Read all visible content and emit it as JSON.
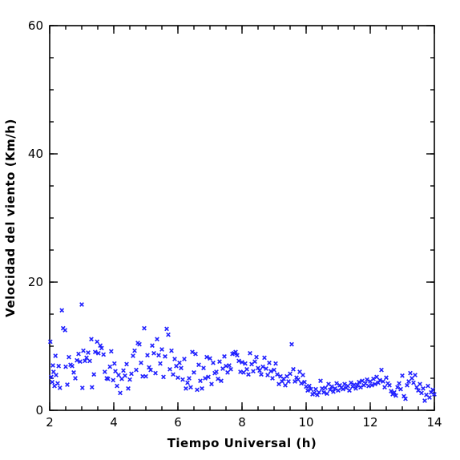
{
  "chart_data": {
    "type": "scatter",
    "xlabel": "Tiempo Universal (h)",
    "ylabel": "Velocidad del viento (Km/h)",
    "xlim": [
      2,
      14
    ],
    "ylim": [
      0,
      60
    ],
    "x_ticks": [
      2,
      4,
      6,
      8,
      10,
      12,
      14
    ],
    "y_ticks": [
      0,
      20,
      40,
      60
    ],
    "x_minor_step": 0.5,
    "y_minor_step": 5,
    "grid": false,
    "marker": "x",
    "marker_color": "#1f1fff",
    "series": [
      {
        "points": [
          [
            2.02,
            10.7
          ],
          [
            2.05,
            5.2
          ],
          [
            2.08,
            4.4
          ],
          [
            2.1,
            7.0
          ],
          [
            2.12,
            6.0
          ],
          [
            2.15,
            3.8
          ],
          [
            2.18,
            8.5
          ],
          [
            2.2,
            5.5
          ],
          [
            2.25,
            4.2
          ],
          [
            2.28,
            6.9
          ],
          [
            2.32,
            3.5
          ],
          [
            2.38,
            15.6
          ],
          [
            2.42,
            12.8
          ],
          [
            2.48,
            12.5
          ],
          [
            2.5,
            6.8
          ],
          [
            2.55,
            4.0
          ],
          [
            2.6,
            8.3
          ],
          [
            2.65,
            7.1
          ],
          [
            2.7,
            6.9
          ],
          [
            2.75,
            5.9
          ],
          [
            2.8,
            5.0
          ],
          [
            2.85,
            7.8
          ],
          [
            2.9,
            8.8
          ],
          [
            2.95,
            7.6
          ],
          [
            3.0,
            16.5
          ],
          [
            3.02,
            3.5
          ],
          [
            3.05,
            9.3
          ],
          [
            3.1,
            7.7
          ],
          [
            3.15,
            8.2
          ],
          [
            3.2,
            9.0
          ],
          [
            3.25,
            7.7
          ],
          [
            3.3,
            11.1
          ],
          [
            3.32,
            3.6
          ],
          [
            3.38,
            5.6
          ],
          [
            3.42,
            9.1
          ],
          [
            3.48,
            10.7
          ],
          [
            3.52,
            8.9
          ],
          [
            3.58,
            10.1
          ],
          [
            3.62,
            9.7
          ],
          [
            3.68,
            8.7
          ],
          [
            3.72,
            6.0
          ],
          [
            3.78,
            5.0
          ],
          [
            3.82,
            4.9
          ],
          [
            3.88,
            6.8
          ],
          [
            3.92,
            9.2
          ],
          [
            3.98,
            4.7
          ],
          [
            4.02,
            7.3
          ],
          [
            4.05,
            6.1
          ],
          [
            4.1,
            3.8
          ],
          [
            4.15,
            5.5
          ],
          [
            4.2,
            2.7
          ],
          [
            4.25,
            4.9
          ],
          [
            4.3,
            6.2
          ],
          [
            4.35,
            5.4
          ],
          [
            4.4,
            7.2
          ],
          [
            4.45,
            3.4
          ],
          [
            4.5,
            4.8
          ],
          [
            4.55,
            5.7
          ],
          [
            4.6,
            8.5
          ],
          [
            4.65,
            9.3
          ],
          [
            4.7,
            6.3
          ],
          [
            4.75,
            10.5
          ],
          [
            4.8,
            10.3
          ],
          [
            4.85,
            7.4
          ],
          [
            4.9,
            5.3
          ],
          [
            4.95,
            12.8
          ],
          [
            5.0,
            5.3
          ],
          [
            5.05,
            8.6
          ],
          [
            5.1,
            6.7
          ],
          [
            5.15,
            6.3
          ],
          [
            5.2,
            10.1
          ],
          [
            5.25,
            8.9
          ],
          [
            5.3,
            5.8
          ],
          [
            5.35,
            11.1
          ],
          [
            5.4,
            8.6
          ],
          [
            5.45,
            7.3
          ],
          [
            5.5,
            9.5
          ],
          [
            5.55,
            5.2
          ],
          [
            5.6,
            8.4
          ],
          [
            5.65,
            12.7
          ],
          [
            5.7,
            11.8
          ],
          [
            5.75,
            6.4
          ],
          [
            5.8,
            9.3
          ],
          [
            5.85,
            5.6
          ],
          [
            5.9,
            8.0
          ],
          [
            5.95,
            6.9
          ],
          [
            6.0,
            5.1
          ],
          [
            6.05,
            7.4
          ],
          [
            6.1,
            6.6
          ],
          [
            6.15,
            4.8
          ],
          [
            6.2,
            8.0
          ],
          [
            6.25,
            3.4
          ],
          [
            6.3,
            4.3
          ],
          [
            6.35,
            5.0
          ],
          [
            6.4,
            3.6
          ],
          [
            6.45,
            9.1
          ],
          [
            6.5,
            5.9
          ],
          [
            6.55,
            8.8
          ],
          [
            6.6,
            3.2
          ],
          [
            6.65,
            7.1
          ],
          [
            6.7,
            4.6
          ],
          [
            6.75,
            3.4
          ],
          [
            6.8,
            6.6
          ],
          [
            6.85,
            5.0
          ],
          [
            6.9,
            8.3
          ],
          [
            6.95,
            5.2
          ],
          [
            7.0,
            8.1
          ],
          [
            7.05,
            4.1
          ],
          [
            7.1,
            7.4
          ],
          [
            7.15,
            5.8
          ],
          [
            7.2,
            6.0
          ],
          [
            7.25,
            4.9
          ],
          [
            7.3,
            7.6
          ],
          [
            7.35,
            4.6
          ],
          [
            7.4,
            6.5
          ],
          [
            7.45,
            8.4
          ],
          [
            7.5,
            6.9
          ],
          [
            7.55,
            5.9
          ],
          [
            7.6,
            7.0
          ],
          [
            7.65,
            6.4
          ],
          [
            7.7,
            8.8
          ],
          [
            7.75,
            8.9
          ],
          [
            7.8,
            9.1
          ],
          [
            7.85,
            8.6
          ],
          [
            7.9,
            7.7
          ],
          [
            7.95,
            6.0
          ],
          [
            8.0,
            7.5
          ],
          [
            8.05,
            5.9
          ],
          [
            8.1,
            7.3
          ],
          [
            8.15,
            6.4
          ],
          [
            8.2,
            5.6
          ],
          [
            8.25,
            8.9
          ],
          [
            8.3,
            7.2
          ],
          [
            8.35,
            6.1
          ],
          [
            8.4,
            7.6
          ],
          [
            8.45,
            8.3
          ],
          [
            8.5,
            6.6
          ],
          [
            8.55,
            6.2
          ],
          [
            8.6,
            5.6
          ],
          [
            8.65,
            6.8
          ],
          [
            8.7,
            8.2
          ],
          [
            8.75,
            6.5
          ],
          [
            8.8,
            5.5
          ],
          [
            8.85,
            7.4
          ],
          [
            8.9,
            6.1
          ],
          [
            8.95,
            5.0
          ],
          [
            9.0,
            6.3
          ],
          [
            9.05,
            7.3
          ],
          [
            9.1,
            5.6
          ],
          [
            9.15,
            4.1
          ],
          [
            9.2,
            5.3
          ],
          [
            9.25,
            4.5
          ],
          [
            9.3,
            4.9
          ],
          [
            9.35,
            3.9
          ],
          [
            9.4,
            5.3
          ],
          [
            9.45,
            4.5
          ],
          [
            9.5,
            5.7
          ],
          [
            9.55,
            10.3
          ],
          [
            9.6,
            6.4
          ],
          [
            9.65,
            4.5
          ],
          [
            9.7,
            5.1
          ],
          [
            9.75,
            4.8
          ],
          [
            9.8,
            6.0
          ],
          [
            9.85,
            4.2
          ],
          [
            9.9,
            5.5
          ],
          [
            9.95,
            4.4
          ],
          [
            10.0,
            3.7
          ],
          [
            10.05,
            3.1
          ],
          [
            10.1,
            3.8
          ],
          [
            10.15,
            3.3
          ],
          [
            10.2,
            2.5
          ],
          [
            10.25,
            2.7
          ],
          [
            10.3,
            3.3
          ],
          [
            10.35,
            2.4
          ],
          [
            10.4,
            2.8
          ],
          [
            10.45,
            4.6
          ],
          [
            10.5,
            3.4
          ],
          [
            10.55,
            2.8
          ],
          [
            10.6,
            3.5
          ],
          [
            10.65,
            2.6
          ],
          [
            10.7,
            4.1
          ],
          [
            10.75,
            3.2
          ],
          [
            10.8,
            3.7
          ],
          [
            10.85,
            2.9
          ],
          [
            10.9,
            3.4
          ],
          [
            10.95,
            4.2
          ],
          [
            11.0,
            3.1
          ],
          [
            11.05,
            3.9
          ],
          [
            11.1,
            3.5
          ],
          [
            11.15,
            3.3
          ],
          [
            11.2,
            4.1
          ],
          [
            11.25,
            3.5
          ],
          [
            11.3,
            3.8
          ],
          [
            11.35,
            3.1
          ],
          [
            11.4,
            4.3
          ],
          [
            11.45,
            3.7
          ],
          [
            11.5,
            4.0
          ],
          [
            11.55,
            3.4
          ],
          [
            11.6,
            3.9
          ],
          [
            11.65,
            4.4
          ],
          [
            11.7,
            3.6
          ],
          [
            11.75,
            4.6
          ],
          [
            11.8,
            3.9
          ],
          [
            11.85,
            4.2
          ],
          [
            11.9,
            4.8
          ],
          [
            11.95,
            3.8
          ],
          [
            12.0,
            4.5
          ],
          [
            12.05,
            3.9
          ],
          [
            12.1,
            4.9
          ],
          [
            12.15,
            4.1
          ],
          [
            12.2,
            5.2
          ],
          [
            12.25,
            4.3
          ],
          [
            12.3,
            4.7
          ],
          [
            12.35,
            6.3
          ],
          [
            12.4,
            4.5
          ],
          [
            12.45,
            3.6
          ],
          [
            12.5,
            5.1
          ],
          [
            12.55,
            4.2
          ],
          [
            12.6,
            3.9
          ],
          [
            12.65,
            3.0
          ],
          [
            12.7,
            2.5
          ],
          [
            12.75,
            2.8
          ],
          [
            12.8,
            2.3
          ],
          [
            12.85,
            3.6
          ],
          [
            12.9,
            4.2
          ],
          [
            12.95,
            3.3
          ],
          [
            13.0,
            5.4
          ],
          [
            13.05,
            2.2
          ],
          [
            13.1,
            1.8
          ],
          [
            13.15,
            3.9
          ],
          [
            13.2,
            4.5
          ],
          [
            13.25,
            5.8
          ],
          [
            13.3,
            5.0
          ],
          [
            13.35,
            4.3
          ],
          [
            13.4,
            5.5
          ],
          [
            13.45,
            3.6
          ],
          [
            13.5,
            3.1
          ],
          [
            13.55,
            4.1
          ],
          [
            13.6,
            2.7
          ],
          [
            13.65,
            3.4
          ],
          [
            13.7,
            1.5
          ],
          [
            13.75,
            2.4
          ],
          [
            13.8,
            3.8
          ],
          [
            13.85,
            2.0
          ],
          [
            13.9,
            2.8
          ],
          [
            13.95,
            3.2
          ],
          [
            14.0,
            2.5
          ]
        ]
      }
    ]
  }
}
